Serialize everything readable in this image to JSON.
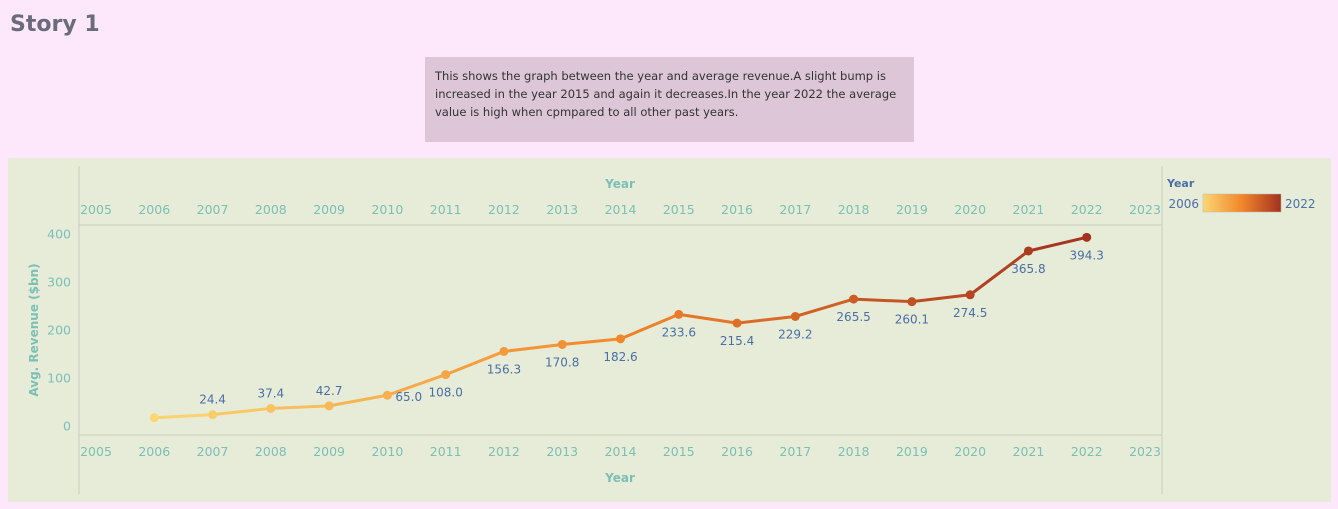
{
  "story": {
    "title": "Story 1",
    "caption": "This shows the graph between the year and average revenue.A slight bump is increased in the year 2015 and again it decreases.In the year 2022 the average value is high when cpmpared to all other past years."
  },
  "colors": {
    "page_bg": "#fde8fb",
    "caption_bg": "#dcc6d8",
    "panel_bg": "#e7ecd9",
    "axis_text": "#7bbfb5",
    "label_text": "#4a6fa5",
    "gradient": [
      "#fbd774",
      "#f2862a",
      "#a2311f"
    ]
  },
  "chart_data": {
    "type": "line",
    "title": "",
    "xlabel": "Year",
    "ylabel": "Avg. Revenue ($bn)",
    "xlim": [
      2005,
      2023
    ],
    "ylim": [
      -18,
      420
    ],
    "x_ticks": [
      2005,
      2006,
      2007,
      2008,
      2009,
      2010,
      2011,
      2012,
      2013,
      2014,
      2015,
      2016,
      2017,
      2018,
      2019,
      2020,
      2021,
      2022,
      2023
    ],
    "y_ticks": [
      0,
      100,
      200,
      300,
      400
    ],
    "x": [
      2006,
      2007,
      2008,
      2009,
      2010,
      2011,
      2012,
      2013,
      2014,
      2015,
      2016,
      2017,
      2018,
      2019,
      2020,
      2021,
      2022
    ],
    "values": [
      18.0,
      24.4,
      37.4,
      42.7,
      65.0,
      108.0,
      156.3,
      170.8,
      182.6,
      233.6,
      215.4,
      229.2,
      265.5,
      260.1,
      274.5,
      365.8,
      394.3
    ],
    "labels": [
      "",
      "24.4",
      "37.4",
      "42.7",
      "65.0",
      "108.0",
      "156.3",
      "170.8",
      "182.6",
      "233.6",
      "215.4",
      "229.2",
      "265.5",
      "260.1",
      "274.5",
      "365.8",
      "394.3"
    ],
    "label_pos": [
      "",
      "above",
      "above",
      "above",
      "right",
      "below",
      "below",
      "below",
      "below",
      "below",
      "below",
      "below",
      "below",
      "below",
      "below",
      "below",
      "below"
    ],
    "color_legend": {
      "title": "Year",
      "min": "2006",
      "max": "2022"
    }
  }
}
